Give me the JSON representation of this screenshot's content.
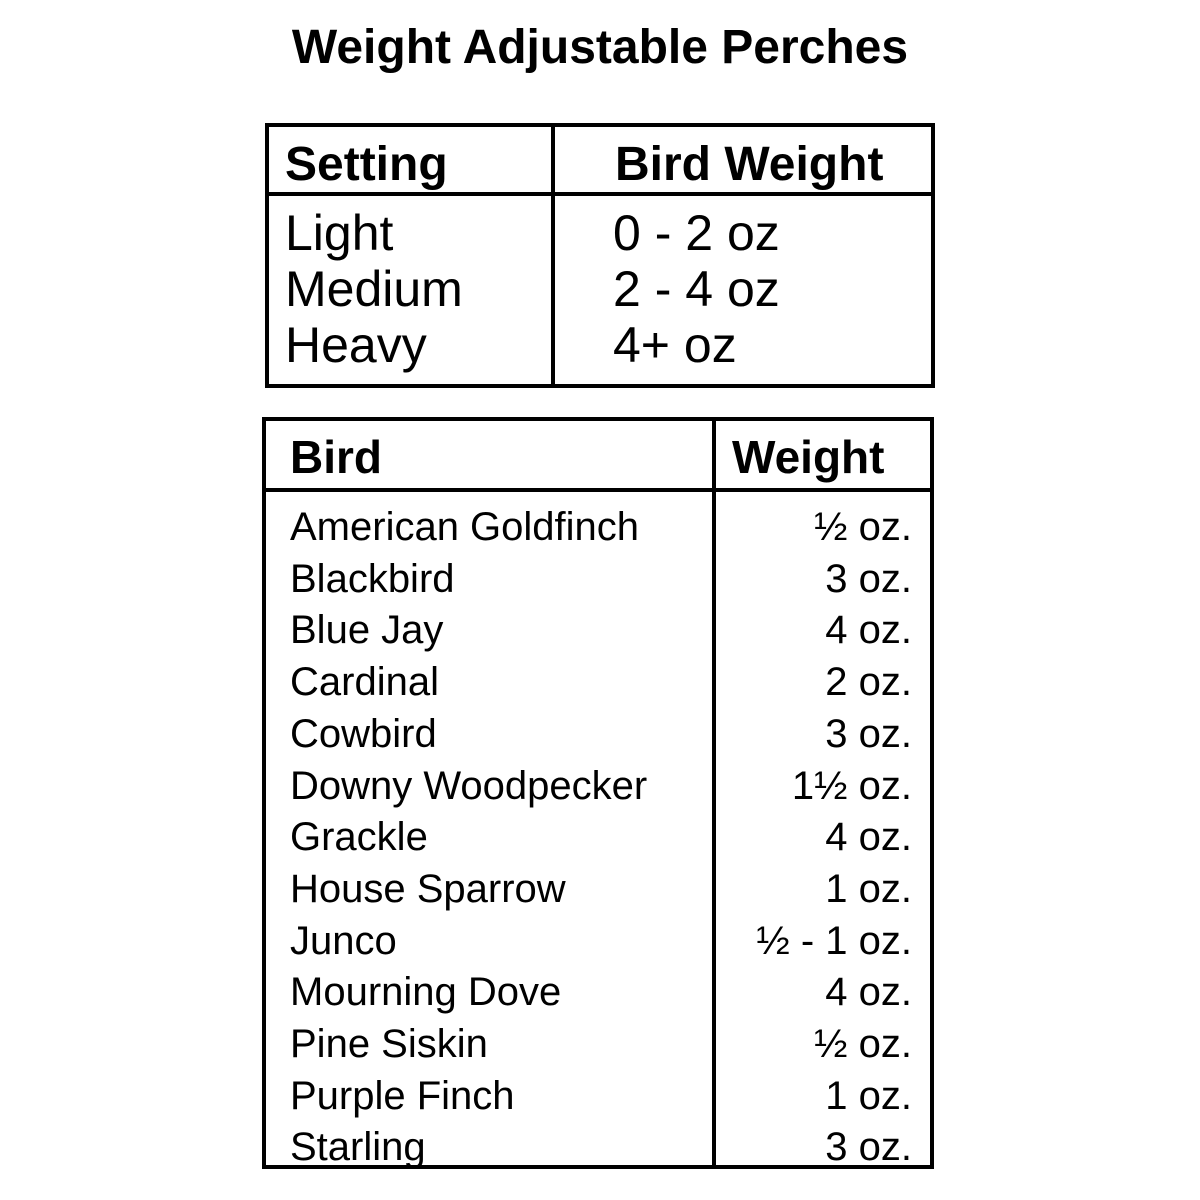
{
  "title": "Weight Adjustable Perches",
  "settings_table": {
    "headers": [
      "Setting",
      "Bird Weight"
    ],
    "rows": [
      {
        "setting": "Light",
        "weight": "0 - 2 oz"
      },
      {
        "setting": "Medium",
        "weight": "2 - 4 oz"
      },
      {
        "setting": "Heavy",
        "weight": "4+ oz"
      }
    ]
  },
  "birds_table": {
    "headers": [
      "Bird",
      "Weight"
    ],
    "rows": [
      {
        "bird": "American Goldfinch",
        "weight": "½ oz."
      },
      {
        "bird": "Blackbird",
        "weight": "3 oz."
      },
      {
        "bird": "Blue Jay",
        "weight": "4 oz."
      },
      {
        "bird": "Cardinal",
        "weight": "2 oz."
      },
      {
        "bird": "Cowbird",
        "weight": "3 oz."
      },
      {
        "bird": "Downy Woodpecker",
        "weight": "1½ oz."
      },
      {
        "bird": "Grackle",
        "weight": "4 oz."
      },
      {
        "bird": "House Sparrow",
        "weight": "1 oz."
      },
      {
        "bird": "Junco",
        "weight": "½ - 1 oz."
      },
      {
        "bird": "Mourning Dove",
        "weight": "4 oz."
      },
      {
        "bird": "Pine Siskin",
        "weight": "½ oz."
      },
      {
        "bird": "Purple Finch",
        "weight": "1 oz."
      },
      {
        "bird": "Starling",
        "weight": "3 oz."
      }
    ]
  }
}
